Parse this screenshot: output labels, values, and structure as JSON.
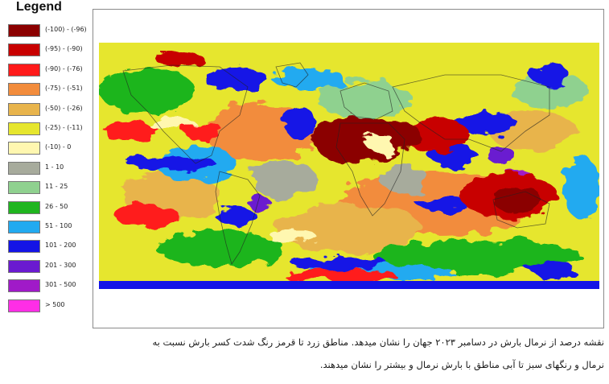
{
  "legend": {
    "title": "Legend",
    "items": [
      {
        "label": "(-100) - (-96)",
        "color": "#8b0000"
      },
      {
        "label": "(-95) - (-90)",
        "color": "#c80000"
      },
      {
        "label": "(-90) - (-76)",
        "color": "#ff1a1a"
      },
      {
        "label": "(-75) - (-51)",
        "color": "#f28c3c"
      },
      {
        "label": "(-50) - (-26)",
        "color": "#e8b44c"
      },
      {
        "label": "(-25) - (-11)",
        "color": "#e6e62e"
      },
      {
        "label": "(-10) - 0",
        "color": "#fff7b0"
      },
      {
        "label": "1 - 10",
        "color": "#a7ab9c"
      },
      {
        "label": "11 - 25",
        "color": "#8fd18f"
      },
      {
        "label": "26 - 50",
        "color": "#1fb51f"
      },
      {
        "label": "51 - 100",
        "color": "#22aaf0"
      },
      {
        "label": "101 - 200",
        "color": "#1414e6"
      },
      {
        "label": "201 - 300",
        "color": "#6a1ad0"
      },
      {
        "label": "301 - 500",
        "color": "#a01ac8"
      },
      {
        "label": "> 500",
        "color": "#ff2ee6"
      }
    ]
  },
  "caption": {
    "line1": "نقشه درصد از نرمال بارش در دسامبر ۲۰۲۳ جهان را نشان میدهد. مناطق زرد تا قرمز رنگ شدت کسر بارش نسبت به",
    "line2": "نرمال و رنگهای سبز تا آبی مناطق با بارش نرمال و بیشتر را نشان میدهند."
  }
}
